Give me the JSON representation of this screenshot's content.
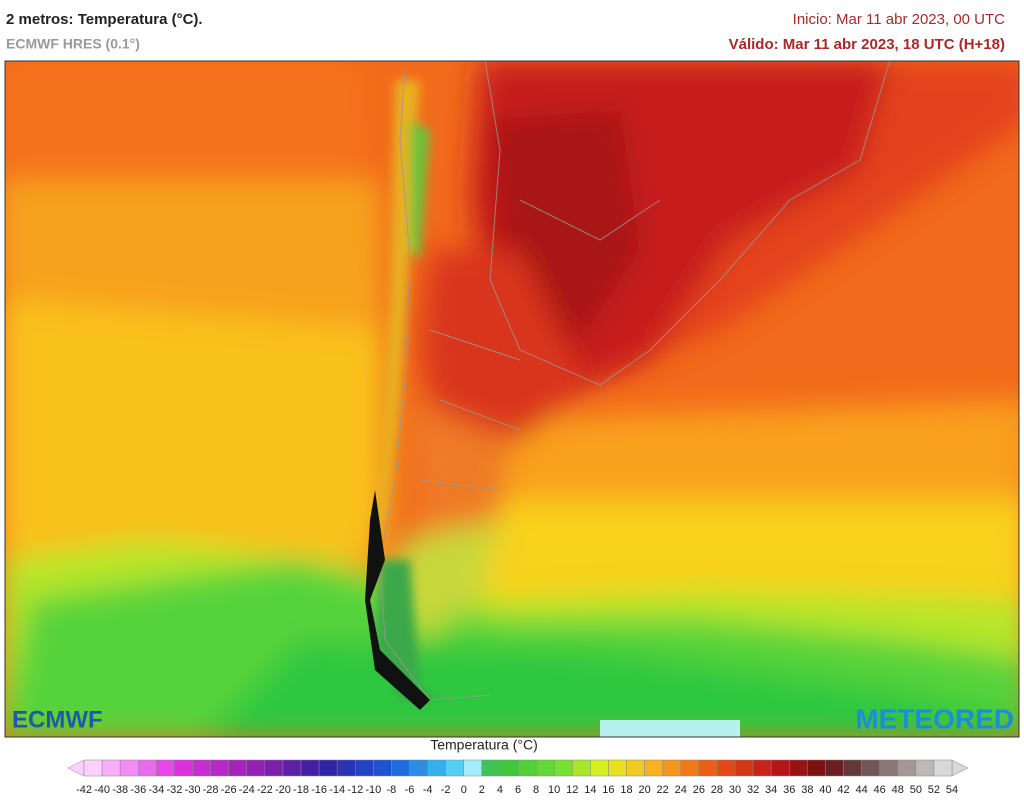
{
  "header": {
    "title": "2 metros: Temperatura (°C).",
    "subtitle": "ECMWF HRES (0.1°)",
    "init": "Inicio: Mar 11 abr 2023, 00 UTC",
    "valid": "Válido: Mar 11 abr 2023, 18 UTC (H+18)"
  },
  "logos": {
    "left": "ECMWF",
    "right": "METEORED"
  },
  "legend": {
    "title": "Temperatura (°C)",
    "ticks": [
      -42,
      -40,
      -38,
      -36,
      -34,
      -32,
      -30,
      -28,
      -26,
      -24,
      -22,
      -20,
      -18,
      -16,
      -14,
      -12,
      -10,
      -8,
      -6,
      -4,
      -2,
      0,
      2,
      4,
      6,
      8,
      10,
      12,
      14,
      16,
      18,
      20,
      22,
      24,
      26,
      28,
      30,
      32,
      34,
      36,
      38,
      40,
      42,
      44,
      46,
      48,
      50,
      52,
      54
    ]
  }
}
